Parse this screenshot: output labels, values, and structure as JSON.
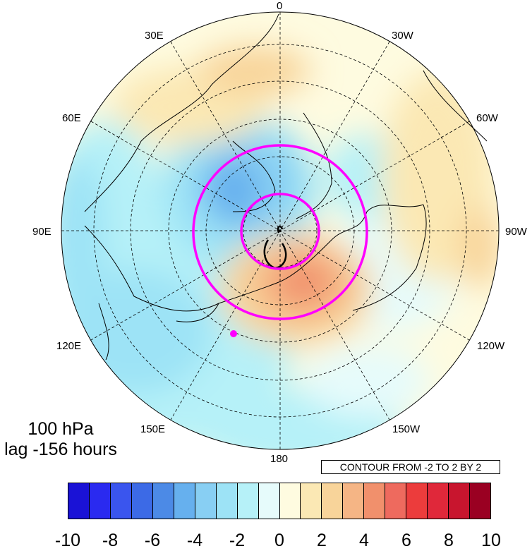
{
  "map": {
    "projection": "north polar stereographic",
    "longitude_labels": [
      {
        "name": "lon-0",
        "text": "0"
      },
      {
        "name": "lon-30w",
        "text": "30W"
      },
      {
        "name": "lon-60w",
        "text": "60W"
      },
      {
        "name": "lon-90w",
        "text": "90W"
      },
      {
        "name": "lon-120w",
        "text": "120W"
      },
      {
        "name": "lon-150w",
        "text": "150W"
      },
      {
        "name": "lon-180",
        "text": "180"
      },
      {
        "name": "lon-150e",
        "text": "150E"
      },
      {
        "name": "lon-120e",
        "text": "120E"
      },
      {
        "name": "lon-90e",
        "text": "90E"
      },
      {
        "name": "lon-60e",
        "text": "60E"
      },
      {
        "name": "lon-30e",
        "text": "30E"
      }
    ],
    "contour_color": "#ff00ff",
    "marker_color": "#ff00ff"
  },
  "annotation": {
    "level": "100 hPa",
    "lag": "lag -156 hours",
    "contour_note": "CONTOUR FROM -2 TO 2 BY 2"
  },
  "colorbar": {
    "colors": [
      "#1a12d6",
      "#2a2af0",
      "#3a55ee",
      "#3c6ae6",
      "#4c8ae6",
      "#66b0ee",
      "#88cff3",
      "#9de3f6",
      "#b6f1f8",
      "#e6fbfb",
      "#fefbe0",
      "#fbe8b4",
      "#f8d49a",
      "#f5b585",
      "#f1906c",
      "#ee6a5e",
      "#ec3c3c",
      "#e0283a",
      "#c8152e",
      "#9a0022"
    ],
    "labels": [
      "-10",
      "-8",
      "-6",
      "-4",
      "-2",
      "0",
      "2",
      "4",
      "6",
      "8",
      "10"
    ]
  }
}
